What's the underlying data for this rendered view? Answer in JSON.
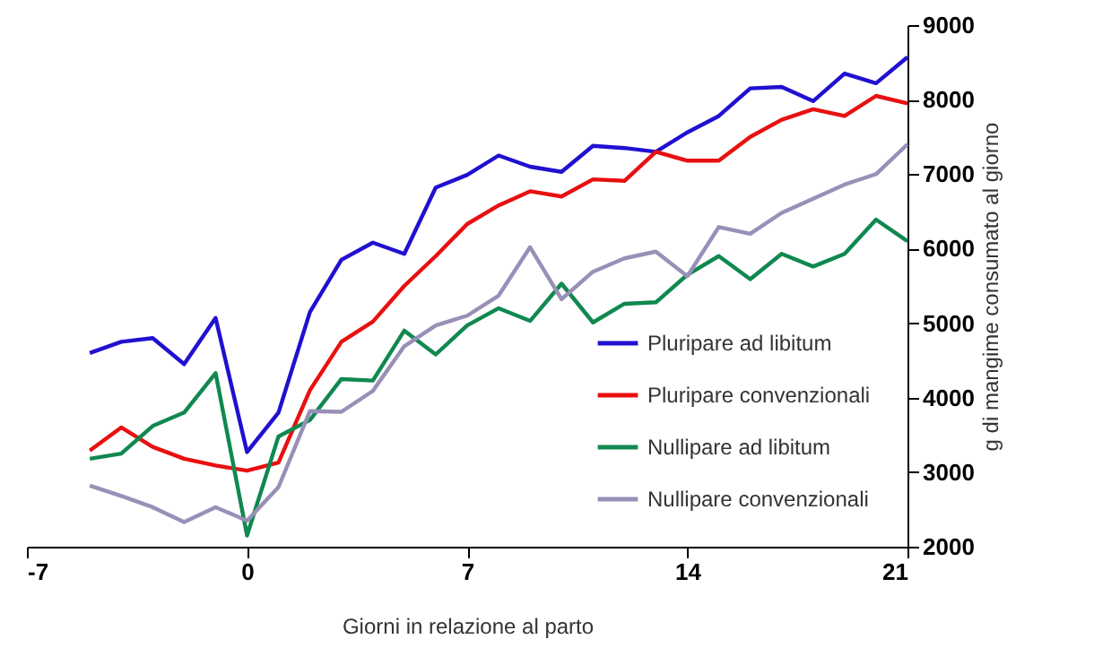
{
  "chart_data": {
    "type": "line",
    "xlabel": "Giorni in relazione al parto",
    "ylabel": "g di mangime consumato al giorno",
    "x": [
      -5,
      -4,
      -3,
      -2,
      -1,
      0,
      1,
      2,
      3,
      4,
      5,
      6,
      7,
      8,
      9,
      10,
      11,
      12,
      13,
      14,
      15,
      16,
      17,
      18,
      19,
      20,
      21
    ],
    "xlim": [
      -7,
      21
    ],
    "xticks": [
      -7,
      0,
      7,
      14,
      21
    ],
    "ylim": [
      2000,
      9000
    ],
    "yticks": [
      2000,
      3000,
      4000,
      5000,
      6000,
      7000,
      8000,
      9000
    ],
    "grid": false,
    "legend": "bottom right",
    "marker": "none",
    "line_style": "solid",
    "series": [
      {
        "name": "Pluripare ad libitum",
        "color": "#2010d0",
        "values": [
          4600,
          4750,
          4800,
          4450,
          5070,
          3270,
          3800,
          5150,
          5850,
          6080,
          5930,
          6820,
          6990,
          7250,
          7100,
          7030,
          7380,
          7350,
          7300,
          7560,
          7780,
          8150,
          8170,
          7980,
          8350,
          8220,
          8570
        ]
      },
      {
        "name": "Pluripare convenzionali",
        "color": "#e81010",
        "values": [
          3290,
          3600,
          3340,
          3180,
          3090,
          3020,
          3130,
          4100,
          4750,
          5020,
          5500,
          5900,
          6330,
          6580,
          6770,
          6700,
          6930,
          6910,
          7300,
          7180,
          7180,
          7500,
          7730,
          7870,
          7780,
          8050,
          7950
        ]
      },
      {
        "name": "Nullipare ad libitum",
        "color": "#108850",
        "values": [
          3180,
          3250,
          3620,
          3800,
          4330,
          2150,
          3480,
          3700,
          4250,
          4230,
          4900,
          4580,
          4970,
          5200,
          5030,
          5530,
          5010,
          5260,
          5280,
          5650,
          5900,
          5590,
          5930,
          5760,
          5930,
          6390,
          6100
        ]
      },
      {
        "name": "Nullipare convenzionali",
        "color": "#9890b8",
        "values": [
          2820,
          2680,
          2530,
          2330,
          2530,
          2350,
          2800,
          3820,
          3810,
          4090,
          4690,
          4970,
          5100,
          5370,
          6020,
          5320,
          5690,
          5870,
          5960,
          5630,
          6290,
          6200,
          6480,
          6670,
          6860,
          7000,
          7400
        ]
      }
    ]
  }
}
